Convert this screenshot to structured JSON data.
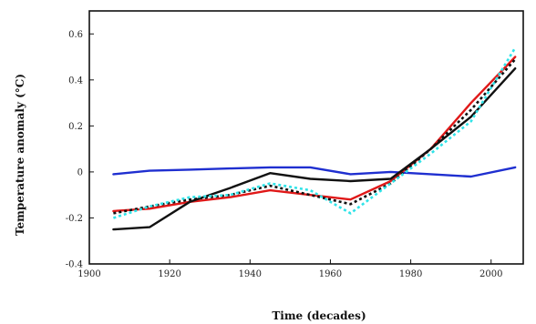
{
  "chart_data": {
    "type": "line",
    "title": "",
    "xlabel": "Time (decades)",
    "ylabel": "Temperature anomaly (°C)",
    "xlim": [
      1900,
      2008
    ],
    "ylim": [
      -0.4,
      0.7
    ],
    "xticks": [
      1900,
      1920,
      1940,
      1960,
      1980,
      2000
    ],
    "yticks": [
      -0.4,
      -0.2,
      0,
      0.2,
      0.4,
      0.6
    ],
    "ytick_labels": [
      "-0.4",
      "-0.2",
      "0",
      "0.2",
      "0.4",
      "0.6"
    ],
    "grid": false,
    "legend": "none",
    "series": [
      {
        "color": "#1f2fd0",
        "style": "solid",
        "x": [
          1906,
          1915,
          1925,
          1935,
          1945,
          1955,
          1965,
          1975,
          1985,
          1995,
          2006
        ],
        "y": [
          -0.01,
          0.005,
          0.01,
          0.015,
          0.02,
          0.02,
          -0.01,
          0.0,
          -0.01,
          -0.02,
          0.02
        ]
      },
      {
        "color": "#e01818",
        "style": "solid",
        "x": [
          1906,
          1915,
          1925,
          1935,
          1945,
          1955,
          1965,
          1975,
          1985,
          1995,
          2006
        ],
        "y": [
          -0.17,
          -0.16,
          -0.13,
          -0.11,
          -0.08,
          -0.1,
          -0.12,
          -0.04,
          0.1,
          0.3,
          0.5
        ]
      },
      {
        "color": "#111111",
        "style": "dotted",
        "x": [
          1906,
          1915,
          1925,
          1935,
          1945,
          1955,
          1965,
          1975,
          1985,
          1995,
          2006
        ],
        "y": [
          -0.18,
          -0.15,
          -0.12,
          -0.1,
          -0.06,
          -0.1,
          -0.14,
          -0.05,
          0.1,
          0.27,
          0.49
        ]
      },
      {
        "color": "#111111",
        "style": "solid",
        "x": [
          1906,
          1915,
          1925,
          1935,
          1945,
          1955,
          1965,
          1975,
          1985,
          1995,
          2006
        ],
        "y": [
          -0.25,
          -0.24,
          -0.13,
          -0.07,
          -0.005,
          -0.03,
          -0.04,
          -0.03,
          0.1,
          0.24,
          0.45
        ]
      },
      {
        "color": "#2fe3e8",
        "style": "dotted",
        "x": [
          1906,
          1915,
          1925,
          1935,
          1945,
          1955,
          1965,
          1975,
          1985,
          1995,
          2006
        ],
        "y": [
          -0.2,
          -0.15,
          -0.11,
          -0.1,
          -0.05,
          -0.08,
          -0.18,
          -0.05,
          0.08,
          0.22,
          0.54
        ]
      }
    ]
  }
}
